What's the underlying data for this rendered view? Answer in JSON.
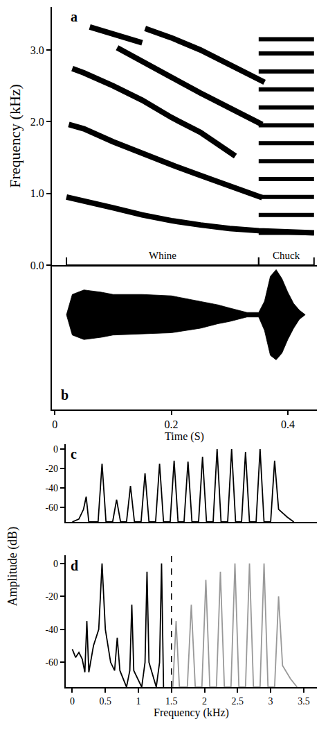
{
  "chart_data": [
    {
      "type": "line",
      "title": "a",
      "y_label": "Frequency (kHz)",
      "xlim": [
        -0.005,
        0.45
      ],
      "ylim": [
        0,
        3.6
      ],
      "yticks": [
        {
          "value": 0,
          "label": "0.0"
        },
        {
          "value": 1,
          "label": "1.0"
        },
        {
          "value": 2,
          "label": "2.0"
        },
        {
          "value": 3,
          "label": "3.0"
        }
      ],
      "tick_labels": "y",
      "grid": false,
      "series": [
        {
          "color": "#000000",
          "x": [
            0.02,
            0.05,
            0.1,
            0.15,
            0.2,
            0.25,
            0.3,
            0.35,
            0.4,
            0.445
          ],
          "values": [
            0.95,
            0.9,
            0.8,
            0.7,
            0.62,
            0.56,
            0.51,
            0.48,
            0.46,
            0.45
          ]
        },
        {
          "color": "#000000",
          "x": [
            0.024,
            0.05,
            0.1,
            0.15,
            0.2,
            0.25,
            0.3,
            0.356
          ],
          "values": [
            1.96,
            1.9,
            1.72,
            1.55,
            1.4,
            1.25,
            1.1,
            0.94
          ]
        },
        {
          "color": "#000000",
          "x": [
            0.03,
            0.05,
            0.1,
            0.15,
            0.2,
            0.25,
            0.31
          ],
          "values": [
            2.74,
            2.68,
            2.5,
            2.3,
            2.06,
            1.85,
            1.52
          ]
        },
        {
          "color": "#000000",
          "x": [
            0.107,
            0.15,
            0.2,
            0.25,
            0.3,
            0.356
          ],
          "values": [
            3.03,
            2.85,
            2.62,
            2.4,
            2.2,
            1.96
          ]
        },
        {
          "color": "#000000",
          "x": [
            0.06,
            0.1,
            0.15
          ],
          "values": [
            3.32,
            3.22,
            3.1
          ]
        },
        {
          "color": "#000000",
          "x": [
            0.155,
            0.2,
            0.25,
            0.3,
            0.36
          ],
          "values": [
            3.3,
            3.17,
            3.0,
            2.8,
            2.55
          ]
        }
      ],
      "chuck_bands": {
        "color": "#000000",
        "start": 0.35,
        "end": 0.445,
        "frequencies": [
          0.45,
          0.7,
          0.95,
          1.2,
          1.45,
          1.7,
          1.95,
          2.2,
          2.45,
          2.7,
          2.95,
          3.15
        ]
      },
      "segments": [
        {
          "label": "Whine",
          "start": 0.02,
          "end": 0.35
        },
        {
          "label": "Chuck",
          "start": 0.35,
          "end": 0.445
        }
      ]
    },
    {
      "type": "area",
      "title": "b",
      "x_label": "Time (S)",
      "xlim": [
        -0.005,
        0.45
      ],
      "xticks": [
        0,
        0.2,
        0.4
      ],
      "ylim": [
        -2.1,
        1.1
      ],
      "tick_labels": "x",
      "color": "#000000",
      "x": [
        0.02,
        0.03,
        0.05,
        0.08,
        0.1,
        0.15,
        0.2,
        0.25,
        0.28,
        0.3,
        0.33,
        0.35,
        0.36,
        0.37,
        0.38,
        0.39,
        0.4,
        0.41,
        0.42,
        0.43
      ],
      "upper": [
        0.0,
        0.45,
        0.55,
        0.5,
        0.45,
        0.45,
        0.42,
        0.3,
        0.22,
        0.15,
        0.05,
        0.05,
        0.3,
        0.85,
        1.0,
        0.8,
        0.5,
        0.25,
        0.1,
        0.0
      ],
      "lower": [
        0.0,
        -0.45,
        -0.55,
        -0.5,
        -0.45,
        -0.42,
        -0.4,
        -0.3,
        -0.2,
        -0.15,
        -0.05,
        -0.05,
        -0.35,
        -0.9,
        -1.0,
        -0.85,
        -0.55,
        -0.3,
        -0.1,
        0.0
      ]
    },
    {
      "type": "line",
      "title": "c",
      "y_label": "Amplitude (dB)",
      "xlim": [
        -0.1,
        3.7
      ],
      "ylim": [
        -75,
        5
      ],
      "yticks": [
        0,
        -20,
        -40,
        -60
      ],
      "tick_labels": "y",
      "series": [
        {
          "color": "#000000",
          "x": [
            0.0,
            0.1,
            0.17,
            0.21,
            0.25,
            0.39,
            0.45,
            0.51,
            0.61,
            0.67,
            0.73,
            0.82,
            0.88,
            0.94,
            1.04,
            1.1,
            1.16,
            1.26,
            1.32,
            1.38,
            1.48,
            1.54,
            1.6,
            1.69,
            1.75,
            1.81,
            1.91,
            1.97,
            2.03,
            2.13,
            2.19,
            2.25,
            2.35,
            2.41,
            2.47,
            2.56,
            2.62,
            2.68,
            2.78,
            2.84,
            2.9,
            3.0,
            3.06,
            3.12,
            3.25,
            3.35
          ],
          "values": [
            -75,
            -72,
            -62,
            -49,
            -75,
            -75,
            -15,
            -75,
            -75,
            -52,
            -75,
            -75,
            -38,
            -75,
            -75,
            -25,
            -75,
            -75,
            -15,
            -75,
            -75,
            -12,
            -75,
            -75,
            -13,
            -75,
            -75,
            -8,
            -75,
            -75,
            0,
            -75,
            -75,
            0,
            -75,
            -75,
            -3,
            -75,
            -75,
            0,
            -75,
            -75,
            -12,
            -62,
            -70,
            -75
          ]
        }
      ]
    },
    {
      "type": "line",
      "title": "d",
      "x_label": "Frequency (kHz)",
      "xlim": [
        -0.1,
        3.7
      ],
      "ylim": [
        -75,
        5
      ],
      "xticks": [
        0,
        0.5,
        1,
        1.5,
        2,
        2.5,
        3,
        3.5
      ],
      "yticks": [
        0,
        -20,
        -40,
        -60
      ],
      "series": [
        {
          "color": "#000000",
          "x": [
            0,
            0.05,
            0.1,
            0.15,
            0.19,
            0.22,
            0.25,
            0.32,
            0.4,
            0.45,
            0.5,
            0.58,
            0.64,
            0.68,
            0.72,
            0.82,
            0.87,
            0.9,
            0.93,
            1.05,
            1.1,
            1.13,
            1.16,
            1.27,
            1.32,
            1.35,
            1.38
          ],
          "values": [
            -52,
            -57,
            -54,
            -58,
            -66,
            -35,
            -66,
            -50,
            -40,
            0,
            -40,
            -60,
            -65,
            -45,
            -65,
            -75,
            -65,
            -25,
            -65,
            -75,
            -60,
            -5,
            -60,
            -75,
            -60,
            0,
            -75
          ]
        },
        {
          "color": "#999999",
          "x": [
            1.52,
            1.57,
            1.62,
            1.74,
            1.8,
            1.86,
            1.96,
            2.02,
            2.08,
            2.18,
            2.24,
            2.3,
            2.4,
            2.46,
            2.52,
            2.62,
            2.68,
            2.74,
            2.84,
            2.9,
            2.96,
            3.06,
            3.12,
            3.18,
            3.3,
            3.4
          ],
          "values": [
            -75,
            -35,
            -75,
            -75,
            -25,
            -75,
            -75,
            -10,
            -75,
            -75,
            -5,
            -75,
            -75,
            0,
            -75,
            -75,
            0,
            -75,
            -75,
            0,
            -75,
            -75,
            -20,
            -62,
            -70,
            -75
          ]
        },
        {
          "color": "#000000",
          "line_style": "dashed",
          "x": [
            1.5,
            1.5
          ],
          "values": [
            -75,
            5
          ]
        }
      ]
    }
  ]
}
